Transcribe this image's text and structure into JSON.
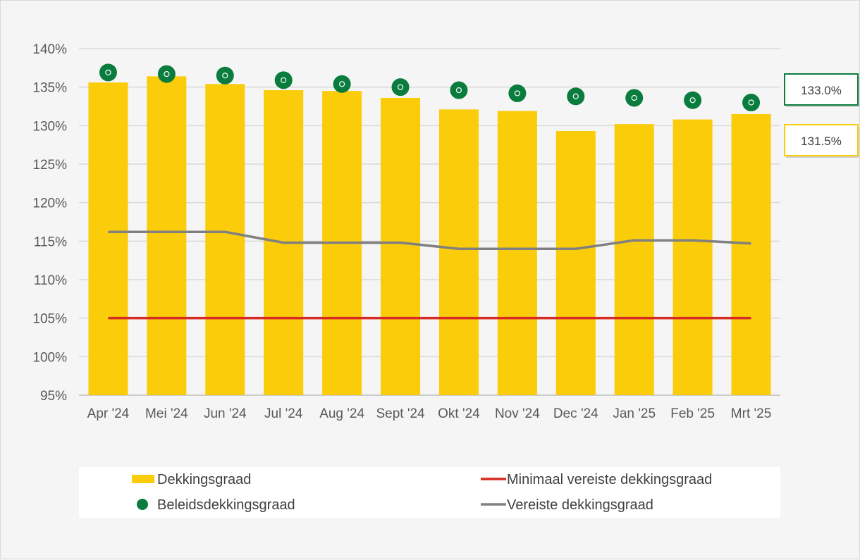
{
  "chart_data": {
    "type": "bar",
    "categories": [
      "Apr '24",
      "Mei '24",
      "Jun '24",
      "Jul '24",
      "Aug '24",
      "Sept '24",
      "Okt '24",
      "Nov '24",
      "Dec '24",
      "Jan '25",
      "Feb '25",
      "Mrt '25"
    ],
    "ylim": [
      95,
      140
    ],
    "yticks": [
      "95%",
      "100%",
      "105%",
      "110%",
      "115%",
      "120%",
      "125%",
      "130%",
      "135%",
      "140%"
    ],
    "grid": true,
    "legend_position": "bottom",
    "series": [
      {
        "name": "Dekkingsgraad",
        "type": "bar",
        "color": "#FACC0A",
        "values": [
          135.6,
          136.4,
          135.4,
          134.6,
          134.5,
          133.6,
          132.1,
          131.9,
          129.3,
          130.2,
          130.8,
          131.5
        ]
      },
      {
        "name": "Beleidsdekkingsgraad",
        "type": "scatter",
        "color": "#0A7D3E",
        "values": [
          136.9,
          136.7,
          136.5,
          135.9,
          135.4,
          135.0,
          134.6,
          134.2,
          133.8,
          133.6,
          133.3,
          133.0
        ]
      },
      {
        "name": "Minimaal vereiste dekkingsgraad",
        "type": "line",
        "color": "#D62B22",
        "values": [
          105.0,
          105.0,
          105.0,
          105.0,
          105.0,
          105.0,
          105.0,
          105.0,
          105.0,
          105.0,
          105.0,
          105.0
        ]
      },
      {
        "name": "Vereiste dekkingsgraad",
        "type": "line",
        "color": "#808080",
        "values": [
          116.2,
          116.2,
          116.2,
          114.8,
          114.8,
          114.8,
          114.0,
          114.0,
          114.0,
          115.1,
          115.1,
          114.7
        ]
      }
    ],
    "annotations": [
      {
        "text": "133.0%",
        "series": "Beleidsdekkingsgraad",
        "value": 133.0,
        "border_color": "#0A7D3E"
      },
      {
        "text": "131.5%",
        "series": "Dekkingsgraad",
        "value": 131.5,
        "border_color": "#FACC0A"
      }
    ],
    "legend": [
      {
        "label": "Dekkingsgraad",
        "series": "Dekkingsgraad",
        "marker": "bar"
      },
      {
        "label": "Minimaal vereiste dekkingsgraad",
        "series": "Minimaal vereiste dekkingsgraad",
        "marker": "line"
      },
      {
        "label": "Beleidsdekkingsgraad",
        "series": "Beleidsdekkingsgraad",
        "marker": "dot"
      },
      {
        "label": "Vereiste dekkingsgraad",
        "series": "Vereiste dekkingsgraad",
        "marker": "line"
      }
    ]
  }
}
